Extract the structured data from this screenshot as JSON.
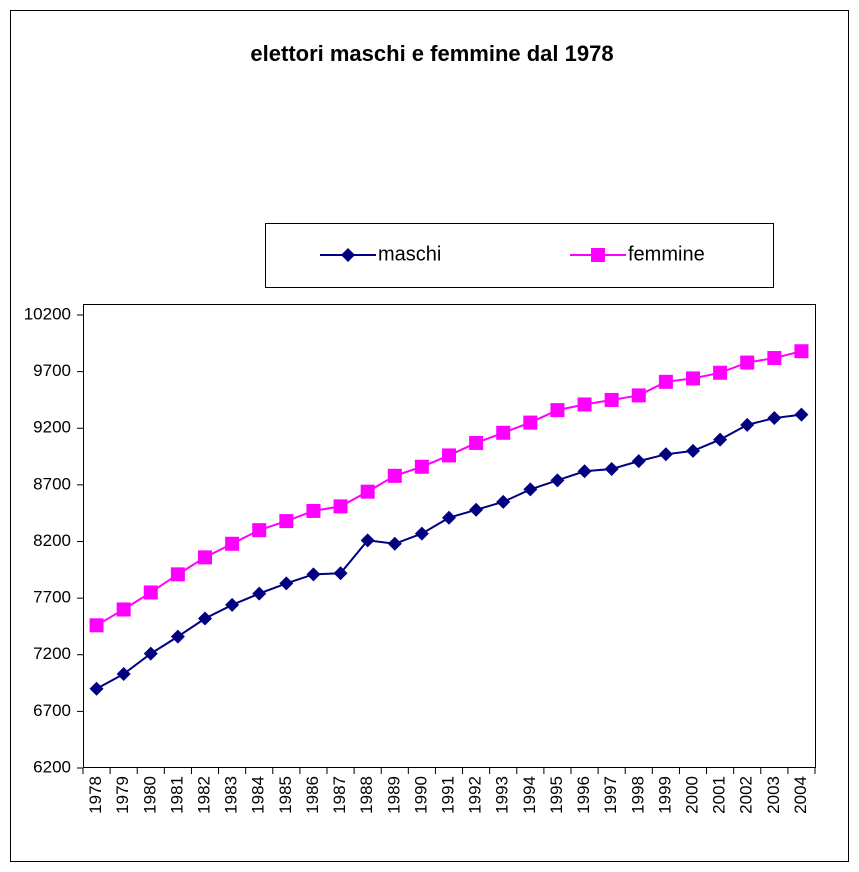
{
  "chart_data": {
    "type": "line",
    "title": "elettori maschi e femmine dal 1978",
    "categories": [
      "1978",
      "1979",
      "1980",
      "1981",
      "1982",
      "1983",
      "1984",
      "1985",
      "1986",
      "1987",
      "1988",
      "1989",
      "1990",
      "1991",
      "1992",
      "1993",
      "1994",
      "1995",
      "1996",
      "1997",
      "1998",
      "1999",
      "2000",
      "2001",
      "2002",
      "2003",
      "2004"
    ],
    "series": [
      {
        "name": "maschi",
        "color": "#000080",
        "marker": "diamond",
        "values": [
          6900,
          7030,
          7210,
          7360,
          7520,
          7640,
          7740,
          7830,
          7910,
          7920,
          8210,
          8180,
          8270,
          8410,
          8480,
          8550,
          8660,
          8740,
          8820,
          8840,
          8910,
          8970,
          9000,
          9100,
          9230,
          9290,
          9320
        ]
      },
      {
        "name": "femmine",
        "color": "#ff00ff",
        "marker": "square",
        "values": [
          7460,
          7600,
          7750,
          7910,
          8060,
          8180,
          8300,
          8380,
          8470,
          8510,
          8640,
          8780,
          8860,
          8960,
          9070,
          9160,
          9250,
          9360,
          9410,
          9450,
          9490,
          9610,
          9640,
          9690,
          9780,
          9820,
          9880
        ]
      }
    ],
    "ylim": [
      6200,
      10200
    ],
    "yticks": [
      6200,
      6700,
      7200,
      7700,
      8200,
      8700,
      9200,
      9700,
      10200
    ],
    "grid": false,
    "legend": "top"
  }
}
